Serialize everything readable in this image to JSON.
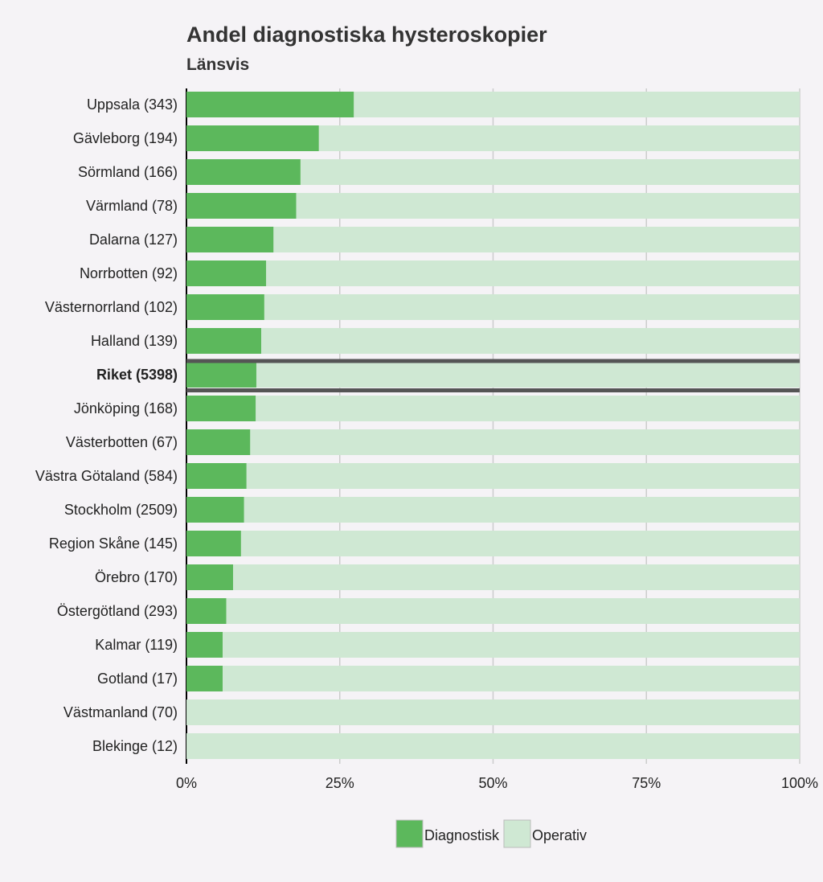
{
  "chart_data": {
    "type": "bar",
    "orientation": "horizontal",
    "stacked": true,
    "title": "Andel diagnostiska hysteroskopier",
    "subtitle": "Länsvis",
    "categories": [
      "Uppsala (343)",
      "Gävleborg (194)",
      "Sörmland (166)",
      "Värmland (78)",
      "Dalarna (127)",
      "Norrbotten (92)",
      "Västernorrland (102)",
      "Halland (139)",
      "Riket (5398)",
      "Jönköping (168)",
      "Västerbotten (67)",
      "Västra Götaland (584)",
      "Stockholm (2509)",
      "Region Skåne (145)",
      "Örebro (170)",
      "Östergötland (293)",
      "Kalmar (119)",
      "Gotland (17)",
      "Västmanland (70)",
      "Blekinge (12)"
    ],
    "highlight_category": "Riket (5398)",
    "series": [
      {
        "name": "Diagnostisk",
        "color": "#5cb85c",
        "values": [
          27.3,
          21.6,
          18.6,
          17.9,
          14.2,
          13.0,
          12.7,
          12.2,
          11.4,
          11.3,
          10.4,
          9.8,
          9.4,
          8.9,
          7.6,
          6.5,
          5.9,
          5.9,
          0,
          0
        ]
      },
      {
        "name": "Operativ",
        "color": "#cfe8d3",
        "values": [
          72.7,
          78.4,
          81.4,
          82.1,
          85.8,
          87.0,
          87.3,
          87.8,
          88.6,
          88.7,
          89.6,
          90.2,
          90.6,
          91.1,
          92.4,
          93.5,
          94.1,
          94.1,
          100,
          100
        ]
      }
    ],
    "xticks": [
      "0%",
      "25%",
      "50%",
      "75%",
      "100%"
    ],
    "xlim": [
      0,
      100
    ],
    "grid": true,
    "legend": "bottom"
  }
}
